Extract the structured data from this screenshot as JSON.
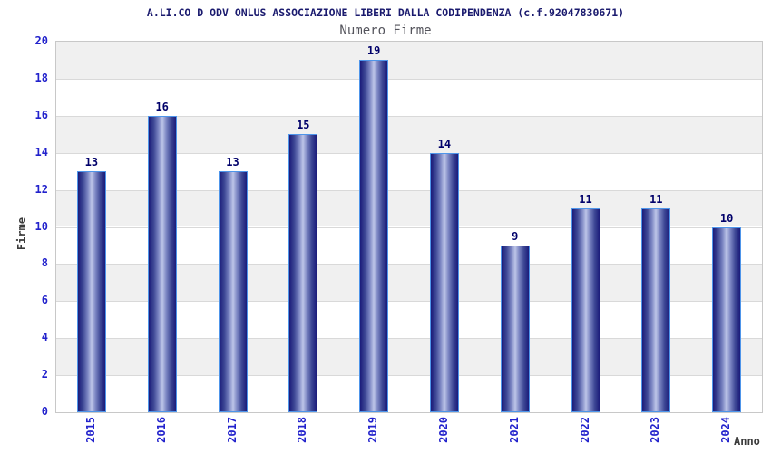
{
  "chart_data": {
    "type": "bar",
    "title": "A.LI.CO D ODV ONLUS ASSOCIAZIONE LIBERI DALLA CODIPENDENZA (c.f.92047830671)",
    "subtitle": "Numero Firme",
    "xlabel": "Anno",
    "ylabel": "Firme",
    "categories": [
      "2015",
      "2016",
      "2017",
      "2018",
      "2019",
      "2020",
      "2021",
      "2022",
      "2023",
      "2024"
    ],
    "values": [
      13,
      16,
      13,
      15,
      19,
      14,
      9,
      11,
      11,
      10
    ],
    "ylim": [
      0,
      20
    ],
    "ytick_step": 2,
    "yticks": [
      0,
      2,
      4,
      6,
      8,
      10,
      12,
      14,
      16,
      18,
      20
    ],
    "grid": "horizontal-bands-alternating",
    "legend": "none",
    "bar_value_labels_shown": true,
    "colors": {
      "title": "#1a1a6e",
      "subtitle": "#54545c",
      "tick_label": "#2222cc",
      "value_label": "#00006a",
      "axis_label": "#3a3a3a",
      "bar_dark": "#1b1b79",
      "bar_highlight": "#bdc5e8",
      "bar_border": "#4e95ea",
      "band_gray": "#f0f0f0",
      "band_white": "#ffffff",
      "grid_line": "#d9d9d9",
      "plot_border": "#c8c8c8"
    }
  }
}
